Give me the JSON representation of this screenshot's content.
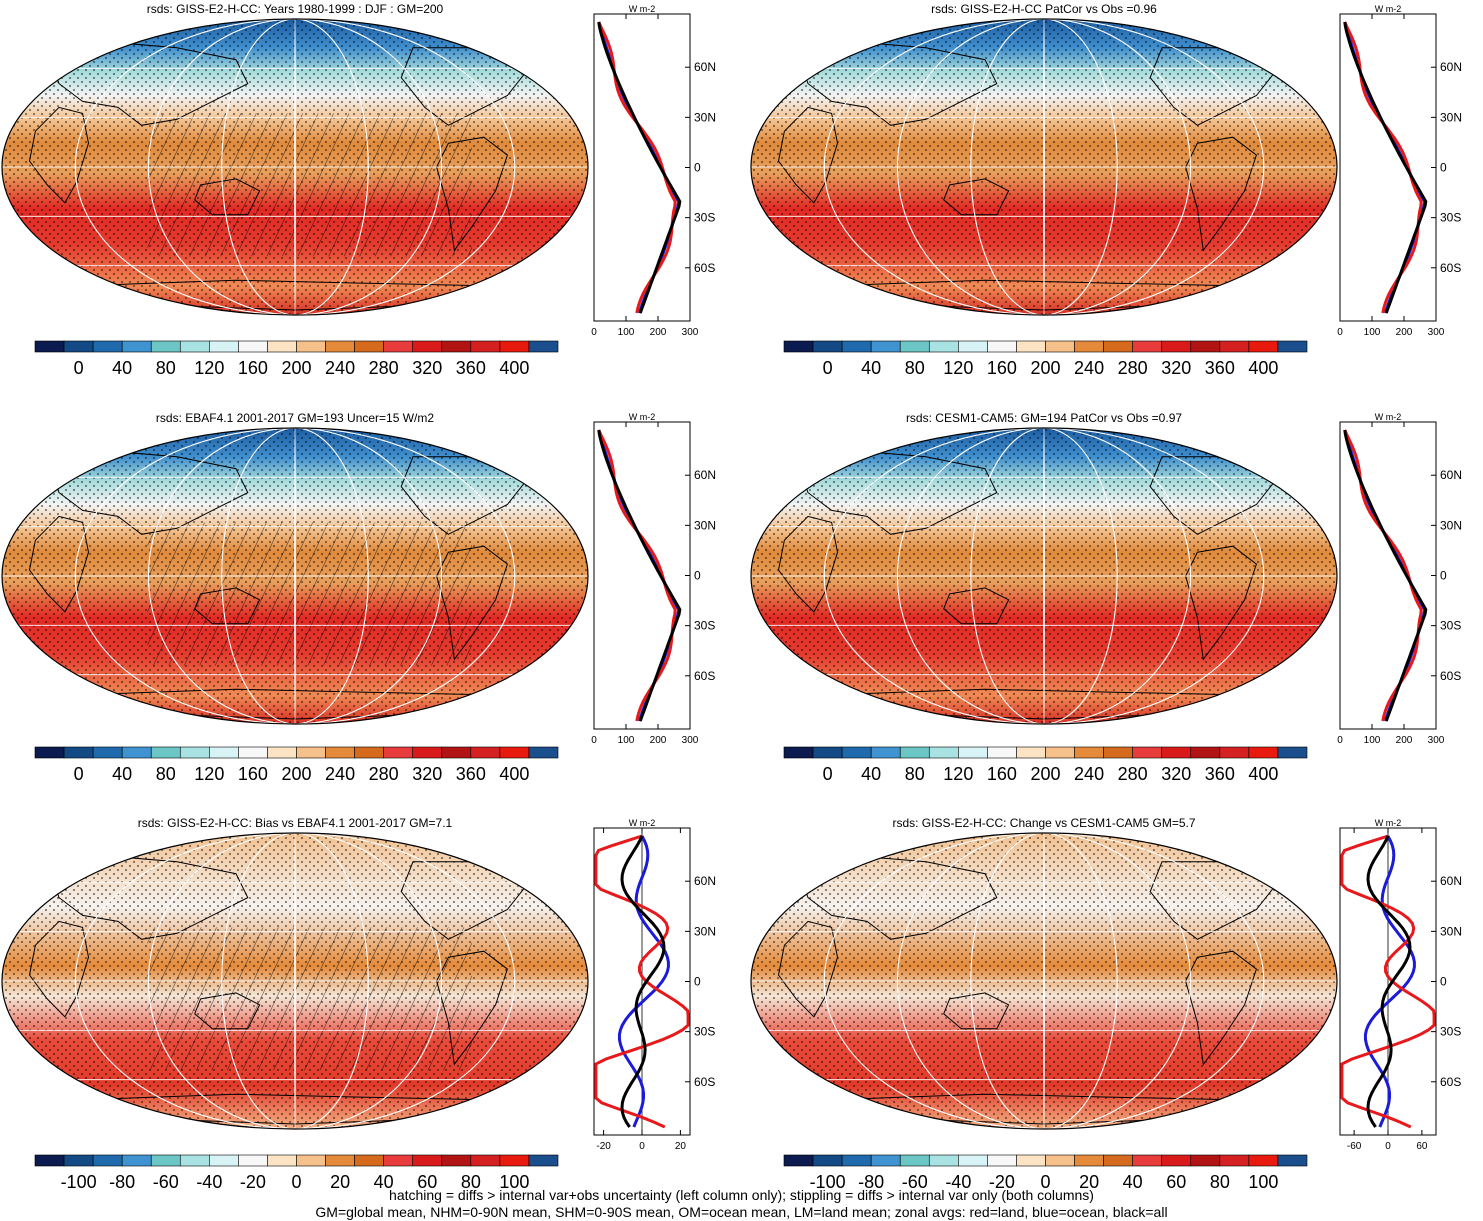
{
  "colors": {
    "abs_palette": [
      "#0b1a4f",
      "#134a86",
      "#1f69ad",
      "#3f93d0",
      "#6cc6c6",
      "#a8e2e2",
      "#d8f3f5",
      "#f7f7f7",
      "#fce3c4",
      "#f6c08a",
      "#e58a3a",
      "#d66a1c",
      "#e83b3b",
      "#d91a1a",
      "#b21414",
      "#d42020",
      "#e8190d",
      "#1a4e8c"
    ],
    "diff_palette": [
      "#0b1a4f",
      "#134a86",
      "#1f69ad",
      "#3f93d0",
      "#6cc6c6",
      "#a8e2e2",
      "#d8f3f5",
      "#f7f7f7",
      "#fce3c4",
      "#f6c08a",
      "#e58a3a",
      "#d66a1c",
      "#e83b3b",
      "#d91a1a",
      "#b21414",
      "#d42020",
      "#e8190d",
      "#1a4e8c"
    ],
    "land_line": "#e8191c",
    "ocean_line": "#1b1bd8",
    "all_line": "#000000"
  },
  "icons": {
    "zonal_unit": "w-m-2-icon"
  },
  "panels": [
    {
      "id": "p1",
      "kind": "abs",
      "title": "rsds: GISS-E2-H-CC: Years 1980-1999 : DJF : GM=200",
      "hatch": true,
      "colorbar_labels": [
        "0",
        "40",
        "80",
        "120",
        "160",
        "200",
        "240",
        "280",
        "320",
        "360",
        "400"
      ],
      "zonal_unit": "W m-2",
      "zonal_xticks": [
        "0",
        "100",
        "200",
        "300"
      ],
      "zonal_lats": [
        "60N",
        "30N",
        "0",
        "30S",
        "60S"
      ],
      "zonal_xrange": [
        0,
        300
      ]
    },
    {
      "id": "p2",
      "kind": "abs",
      "title": "rsds: GISS-E2-H-CC PatCor vs Obs =0.96",
      "hatch": false,
      "colorbar_labels": [
        "0",
        "40",
        "80",
        "120",
        "160",
        "200",
        "240",
        "280",
        "320",
        "360",
        "400"
      ],
      "zonal_unit": "W m-2",
      "zonal_xticks": [
        "0",
        "100",
        "200",
        "300"
      ],
      "zonal_lats": [
        "60N",
        "30N",
        "0",
        "30S",
        "60S"
      ],
      "zonal_xrange": [
        0,
        300
      ]
    },
    {
      "id": "p3",
      "kind": "abs",
      "title": "rsds: EBAF4.1 2001-2017 GM=193 Uncer=15 W/m2",
      "hatch": true,
      "colorbar_labels": [
        "0",
        "40",
        "80",
        "120",
        "160",
        "200",
        "240",
        "280",
        "320",
        "360",
        "400"
      ],
      "zonal_unit": "W m-2",
      "zonal_xticks": [
        "0",
        "100",
        "200",
        "300"
      ],
      "zonal_lats": [
        "60N",
        "30N",
        "0",
        "30S",
        "60S"
      ],
      "zonal_xrange": [
        0,
        300
      ]
    },
    {
      "id": "p4",
      "kind": "abs",
      "title": "rsds: CESM1-CAM5: GM=194 PatCor vs Obs =0.97",
      "hatch": false,
      "colorbar_labels": [
        "0",
        "40",
        "80",
        "120",
        "160",
        "200",
        "240",
        "280",
        "320",
        "360",
        "400"
      ],
      "zonal_unit": "W m-2",
      "zonal_xticks": [
        "0",
        "100",
        "200",
        "300"
      ],
      "zonal_lats": [
        "60N",
        "30N",
        "0",
        "30S",
        "60S"
      ],
      "zonal_xrange": [
        0,
        300
      ]
    },
    {
      "id": "p5",
      "kind": "diff",
      "title": "rsds: GISS-E2-H-CC: Bias vs EBAF4.1 2001-2017 GM=7.1",
      "hatch": true,
      "colorbar_labels": [
        "-100",
        "-80",
        "-60",
        "-40",
        "-20",
        "0",
        "20",
        "40",
        "60",
        "80",
        "100"
      ],
      "zonal_unit": "W m-2",
      "zonal_xticks": [
        "-20",
        "0",
        "20"
      ],
      "zonal_lats": [
        "60N",
        "30N",
        "0",
        "30S",
        "60S"
      ],
      "zonal_xrange": [
        -25,
        25
      ]
    },
    {
      "id": "p6",
      "kind": "diff",
      "title": "rsds: GISS-E2-H-CC: Change vs CESM1-CAM5 GM=5.7",
      "hatch": false,
      "colorbar_labels": [
        "-100",
        "-80",
        "-60",
        "-40",
        "-20",
        "0",
        "20",
        "40",
        "60",
        "80",
        "100"
      ],
      "zonal_unit": "W m-2",
      "zonal_xticks": [
        "-60",
        "0",
        "60"
      ],
      "zonal_lats": [
        "60N",
        "30N",
        "0",
        "30S",
        "60S"
      ],
      "zonal_xrange": [
        -85,
        85
      ]
    }
  ],
  "footnote": {
    "line1": "hatching = diffs > internal var+obs uncertainty (left column only); stippling = diffs > internal var only (both columns)",
    "line2": "GM=global mean, NHM=0-90N mean, SHM=0-90S mean, OM=ocean mean, LM=land mean; zonal avgs: red=land, blue=ocean, black=all"
  }
}
